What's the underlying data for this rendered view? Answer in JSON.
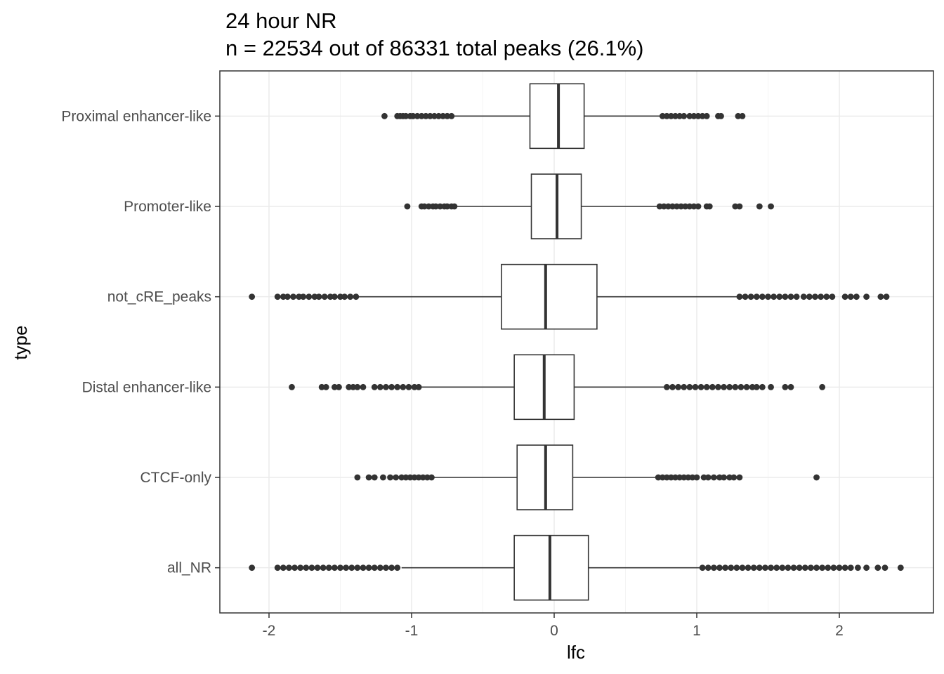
{
  "chart_data": {
    "type": "boxplot",
    "orientation": "horizontal",
    "title": "24 hour NR",
    "subtitle": "n = 22534 out of 86331 total peaks (26.1%)",
    "xlabel": "lfc",
    "ylabel": "type",
    "xlim": [
      -2.33,
      2.65
    ],
    "x_ticks": [
      -2,
      -1,
      0,
      1,
      2
    ],
    "grid": true,
    "colors": {
      "box_fill": "#ffffff",
      "line": "#333333",
      "grid_major": "#ebebeb",
      "grid_minor": "#f4f4f4",
      "panel_border": "#333333"
    },
    "categories": [
      "Proximal enhancer-like",
      "Promoter-like",
      "not_cRE_peaks",
      "Distal enhancer-like",
      "CTCF-only",
      "all_NR"
    ],
    "boxes": [
      {
        "category": "Proximal enhancer-like",
        "whisker_low": -0.7,
        "q1": -0.17,
        "median": 0.03,
        "q3": 0.21,
        "whisker_high": 0.75,
        "outliers": [
          -1.19,
          -1.1,
          -1.08,
          -1.06,
          -1.04,
          -1.01,
          -0.99,
          -0.96,
          -0.93,
          -0.9,
          -0.87,
          -0.84,
          -0.81,
          -0.78,
          -0.75,
          -0.72,
          0.76,
          0.79,
          0.82,
          0.85,
          0.88,
          0.91,
          0.95,
          0.98,
          1.01,
          1.04,
          1.07,
          1.15,
          1.17,
          1.29,
          1.32
        ]
      },
      {
        "category": "Promoter-like",
        "whisker_low": -0.69,
        "q1": -0.16,
        "median": 0.02,
        "q3": 0.19,
        "whisker_high": 0.73,
        "outliers": [
          -1.03,
          -0.93,
          -0.91,
          -0.88,
          -0.85,
          -0.83,
          -0.8,
          -0.77,
          -0.75,
          -0.72,
          -0.7,
          0.74,
          0.77,
          0.8,
          0.83,
          0.86,
          0.89,
          0.92,
          0.95,
          0.98,
          1.01,
          1.07,
          1.09,
          1.27,
          1.3,
          1.44,
          1.52
        ]
      },
      {
        "category": "not_cRE_peaks",
        "whisker_low": -1.37,
        "q1": -0.37,
        "median": -0.06,
        "q3": 0.3,
        "whisker_high": 1.29,
        "outliers": [
          -2.12,
          -1.94,
          -1.9,
          -1.87,
          -1.83,
          -1.79,
          -1.76,
          -1.72,
          -1.68,
          -1.65,
          -1.61,
          -1.57,
          -1.54,
          -1.5,
          -1.47,
          -1.43,
          -1.39,
          1.3,
          1.34,
          1.38,
          1.42,
          1.46,
          1.5,
          1.54,
          1.58,
          1.62,
          1.66,
          1.7,
          1.75,
          1.79,
          1.83,
          1.87,
          1.91,
          1.95,
          2.04,
          2.08,
          2.12,
          2.19,
          2.29,
          2.33
        ]
      },
      {
        "category": "Distal enhancer-like",
        "whisker_low": -0.93,
        "q1": -0.28,
        "median": -0.07,
        "q3": 0.14,
        "whisker_high": 0.77,
        "outliers": [
          -1.84,
          -1.63,
          -1.6,
          -1.54,
          -1.51,
          -1.44,
          -1.41,
          -1.38,
          -1.34,
          -1.26,
          -1.22,
          -1.18,
          -1.14,
          -1.1,
          -1.06,
          -1.02,
          -0.98,
          -0.95,
          0.79,
          0.83,
          0.87,
          0.91,
          0.95,
          0.99,
          1.03,
          1.07,
          1.11,
          1.15,
          1.19,
          1.23,
          1.27,
          1.31,
          1.35,
          1.39,
          1.42,
          1.46,
          1.52,
          1.62,
          1.66,
          1.88
        ]
      },
      {
        "category": "CTCF-only",
        "whisker_low": -0.85,
        "q1": -0.26,
        "median": -0.06,
        "q3": 0.13,
        "whisker_high": 0.72,
        "outliers": [
          -1.38,
          -1.3,
          -1.26,
          -1.2,
          -1.15,
          -1.11,
          -1.07,
          -1.04,
          -1.01,
          -0.98,
          -0.95,
          -0.92,
          -0.89,
          -0.86,
          0.73,
          0.76,
          0.79,
          0.82,
          0.85,
          0.88,
          0.91,
          0.94,
          0.97,
          1.0,
          1.05,
          1.08,
          1.12,
          1.16,
          1.19,
          1.23,
          1.26,
          1.3,
          1.84
        ]
      },
      {
        "category": "all_NR",
        "whisker_low": -1.07,
        "q1": -0.28,
        "median": -0.03,
        "q3": 0.24,
        "whisker_high": 1.02,
        "outliers": [
          -2.12,
          -1.94,
          -1.9,
          -1.86,
          -1.82,
          -1.78,
          -1.74,
          -1.7,
          -1.66,
          -1.62,
          -1.58,
          -1.54,
          -1.5,
          -1.46,
          -1.42,
          -1.38,
          -1.34,
          -1.3,
          -1.26,
          -1.22,
          -1.18,
          -1.14,
          -1.1,
          1.04,
          1.08,
          1.12,
          1.16,
          1.2,
          1.24,
          1.28,
          1.32,
          1.36,
          1.4,
          1.44,
          1.48,
          1.52,
          1.56,
          1.6,
          1.64,
          1.68,
          1.72,
          1.76,
          1.8,
          1.84,
          1.88,
          1.92,
          1.96,
          2.0,
          2.04,
          2.08,
          2.13,
          2.19,
          2.27,
          2.32,
          2.43
        ]
      }
    ]
  }
}
